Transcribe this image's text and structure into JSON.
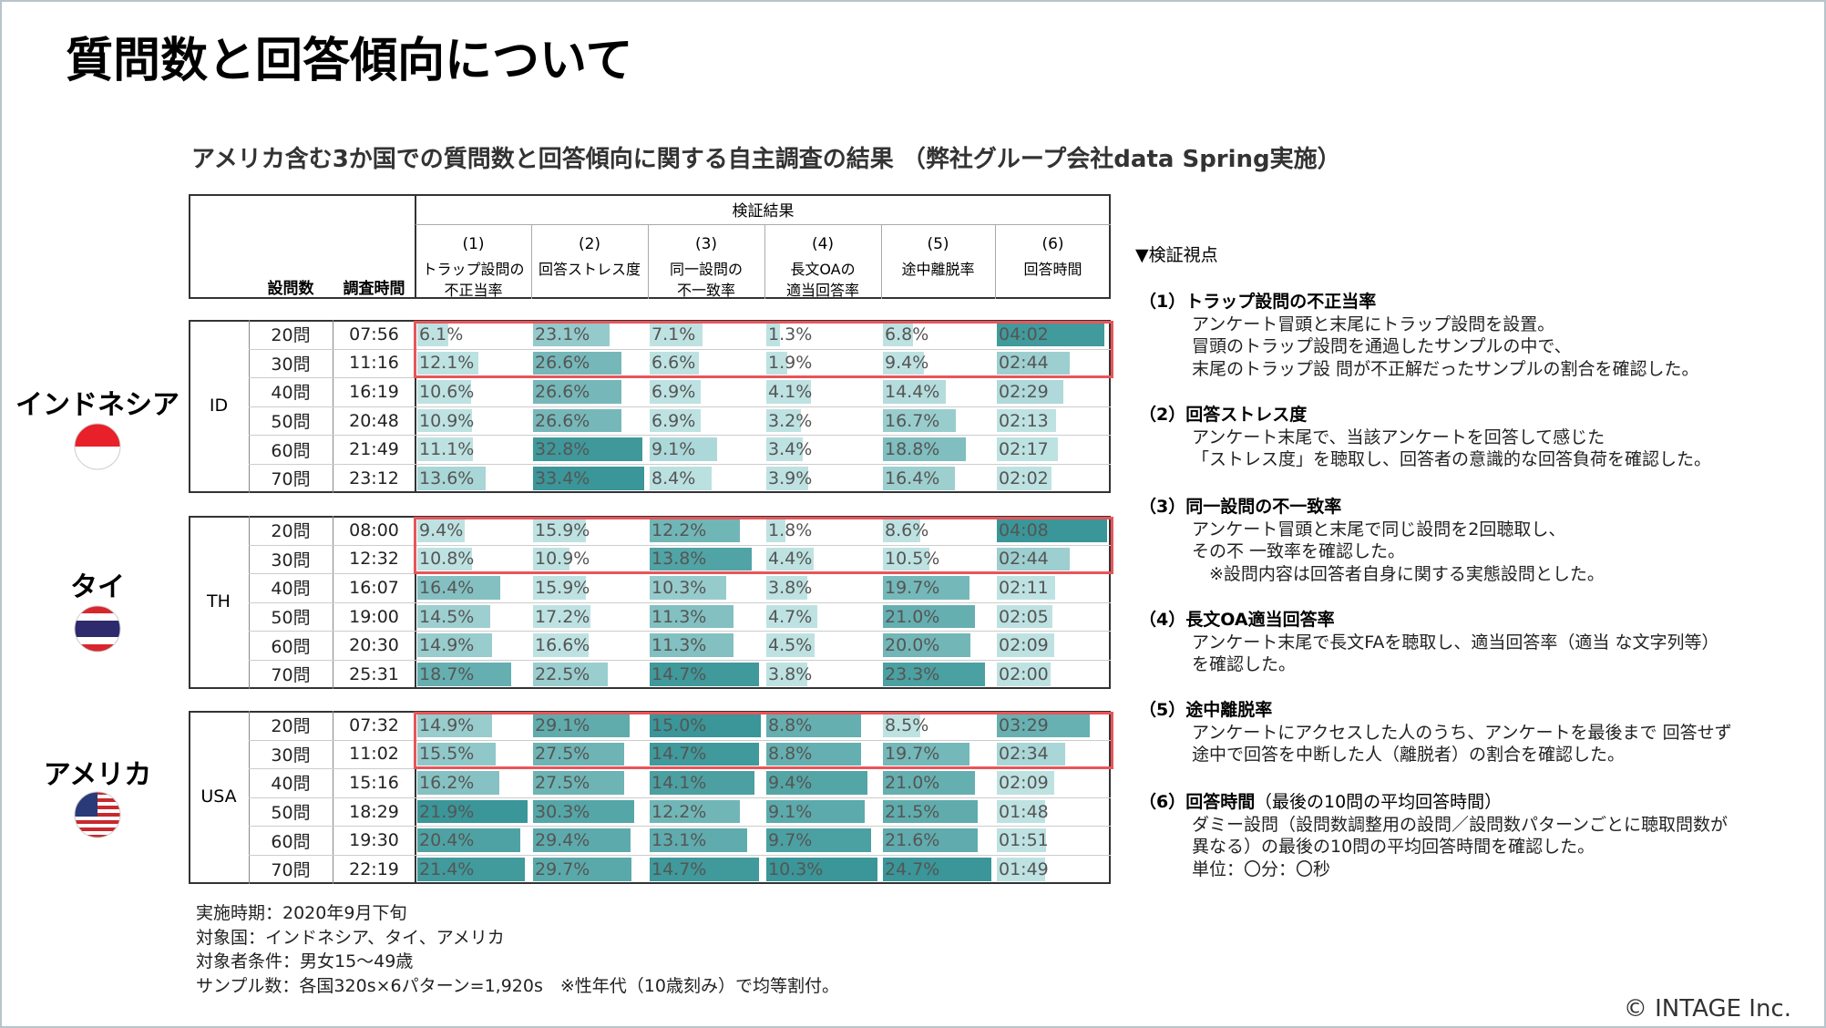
{
  "header": {
    "title": "質問数と回答傾向について",
    "subtitle": "アメリカ含む3か国での質問数と回答傾向に関する自主調査の結果 （弊社グループ会社data Spring実施）"
  },
  "table": {
    "group_header": "検証結果",
    "columns": [
      "設問数",
      "調査時間"
    ],
    "metrics": [
      {
        "number": "(1)",
        "label": [
          "トラップ設問の",
          "不正当率"
        ]
      },
      {
        "number": "(2)",
        "label": [
          "回答ストレス度"
        ]
      },
      {
        "number": "(3)",
        "label": [
          "同一設問の",
          "不一致率"
        ]
      },
      {
        "number": "(4)",
        "label": [
          "長文OAの",
          "適当回答率"
        ]
      },
      {
        "number": "(5)",
        "label": [
          "途中離脱率"
        ]
      },
      {
        "number": "(6)",
        "label": [
          "回答時間"
        ]
      }
    ],
    "groups": [
      {
        "country": "インドネシア",
        "code": "ID",
        "rows": [
          [
            "20問",
            "07:56",
            "6.1%",
            "23.1%",
            "7.1%",
            "1.3%",
            "6.8%",
            "04:02"
          ],
          [
            "30問",
            "11:16",
            "12.1%",
            "26.6%",
            "6.6%",
            "1.9%",
            "9.4%",
            "02:44"
          ],
          [
            "40問",
            "16:19",
            "10.6%",
            "26.6%",
            "6.9%",
            "4.1%",
            "14.4%",
            "02:29"
          ],
          [
            "50問",
            "20:48",
            "10.9%",
            "26.6%",
            "6.9%",
            "3.2%",
            "16.7%",
            "02:13"
          ],
          [
            "60問",
            "21:49",
            "11.1%",
            "32.8%",
            "9.1%",
            "3.4%",
            "18.8%",
            "02:17"
          ],
          [
            "70問",
            "23:12",
            "13.6%",
            "33.4%",
            "8.4%",
            "3.9%",
            "16.4%",
            "02:02"
          ]
        ]
      },
      {
        "country": "タイ",
        "code": "TH",
        "rows": [
          [
            "20問",
            "08:00",
            "9.4%",
            "15.9%",
            "12.2%",
            "1.8%",
            "8.6%",
            "04:08"
          ],
          [
            "30問",
            "12:32",
            "10.8%",
            "10.9%",
            "13.8%",
            "4.4%",
            "10.5%",
            "02:44"
          ],
          [
            "40問",
            "16:07",
            "16.4%",
            "15.9%",
            "10.3%",
            "3.8%",
            "19.7%",
            "02:11"
          ],
          [
            "50問",
            "19:00",
            "14.5%",
            "17.2%",
            "11.3%",
            "4.7%",
            "21.0%",
            "02:05"
          ],
          [
            "60問",
            "20:30",
            "14.9%",
            "16.6%",
            "11.3%",
            "4.5%",
            "20.0%",
            "02:09"
          ],
          [
            "70問",
            "25:31",
            "18.7%",
            "22.5%",
            "14.7%",
            "3.8%",
            "23.3%",
            "02:00"
          ]
        ]
      },
      {
        "country": "アメリカ",
        "code": "USA",
        "rows": [
          [
            "20問",
            "07:32",
            "14.9%",
            "29.1%",
            "15.0%",
            "8.8%",
            "8.5%",
            "03:29"
          ],
          [
            "30問",
            "11:02",
            "15.5%",
            "27.5%",
            "14.7%",
            "8.8%",
            "19.7%",
            "02:34"
          ],
          [
            "40問",
            "15:16",
            "16.2%",
            "27.5%",
            "14.1%",
            "9.4%",
            "21.0%",
            "02:09"
          ],
          [
            "50問",
            "18:29",
            "21.9%",
            "30.3%",
            "12.2%",
            "9.1%",
            "21.5%",
            "01:48"
          ],
          [
            "60問",
            "19:30",
            "20.4%",
            "29.4%",
            "13.1%",
            "9.7%",
            "21.6%",
            "01:51"
          ],
          [
            "70問",
            "22:19",
            "21.4%",
            "29.7%",
            "14.7%",
            "10.3%",
            "24.7%",
            "01:49"
          ]
        ]
      }
    ]
  },
  "notes": [
    "実施時期：2020年9月下旬",
    "対象国：インドネシア、タイ、アメリカ",
    "対象者条件：男女15～49歳",
    "サンプル数：各国320s×6パターン=1,920s　※性年代（10歳刻み）で均等割付。"
  ],
  "viewpoints": {
    "title": "▼検証視点",
    "items": [
      {
        "heading": "（1）トラップ設問の不正当率",
        "lines": [
          "アンケート冒頭と末尾にトラップ設問を設置。",
          "冒頭のトラップ設問を通過したサンプルの中で、",
          "末尾のトラップ設 問が不正解だったサンプルの割合を確認した。"
        ]
      },
      {
        "heading": "（2）回答ストレス度",
        "lines": [
          "アンケート末尾で、当該アンケートを回答して感じた",
          "「ストレス度」を聴取し、回答者の意識的な回答負荷を確認した。"
        ]
      },
      {
        "heading": "（3）同一設問の不一致率",
        "lines": [
          "アンケート冒頭と末尾で同じ設問を2回聴取し、",
          "その不 一致率を確認した。",
          "　※設問内容は回答者自身に関する実態設問とした。"
        ]
      },
      {
        "heading": "（4）長文OA適当回答率",
        "lines": [
          "アンケート末尾で長文FAを聴取し、適当回答率（適当 な文字列等）",
          "を確認した。"
        ]
      },
      {
        "heading": "（5）途中離脱率",
        "lines": [
          "アンケートにアクセスした人のうち、アンケートを最後まで 回答せず",
          "途中で回答を中断した人（離脱者）の割合を確認した。"
        ]
      },
      {
        "heading": "（6）回答時間",
        "heading_note": "（最後の10問の平均回答時間）",
        "lines": [
          "ダミー設問（設問数調整用の設問／設問数パターンごとに聴取問数が",
          "異なる）の最後の10問の平均回答時間を確認した。",
          "単位：〇分：〇秒"
        ]
      }
    ]
  },
  "footer": {
    "copyright": "© INTAGE Inc."
  }
}
